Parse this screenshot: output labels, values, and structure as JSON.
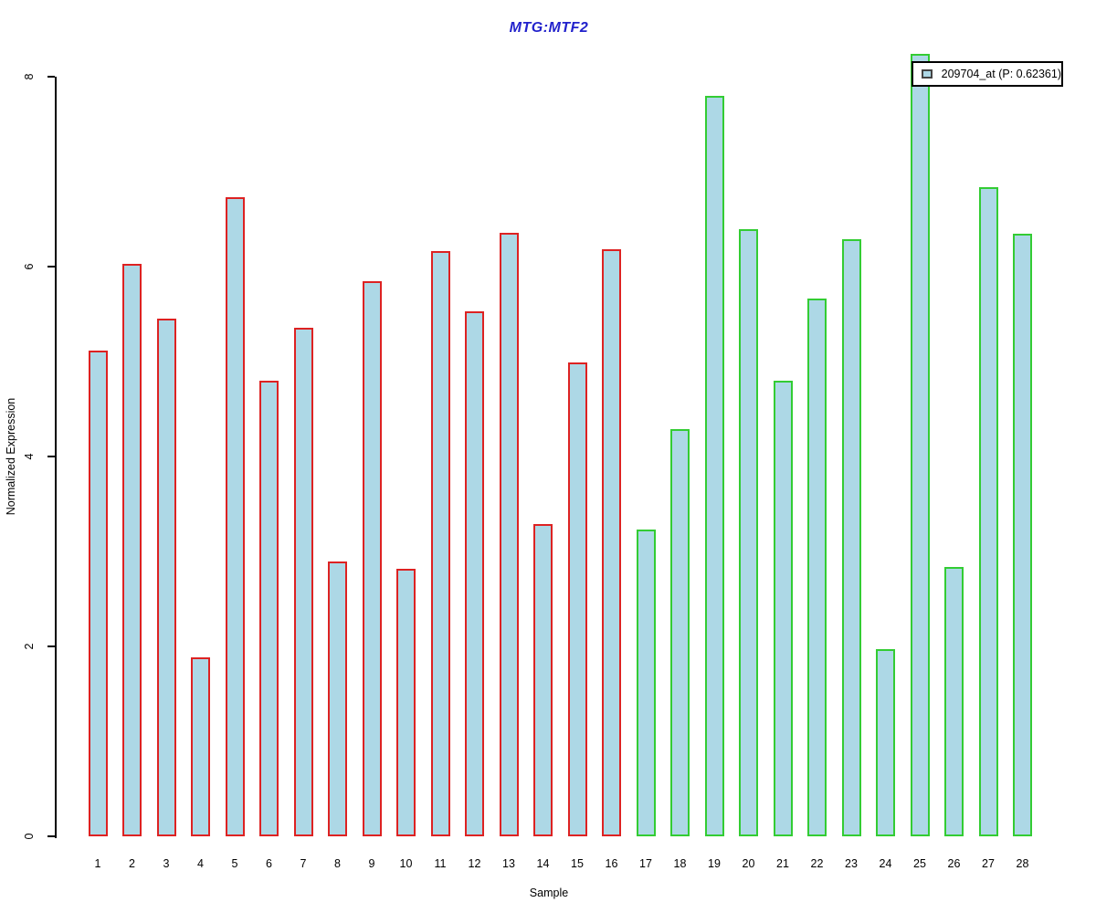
{
  "title": "MTG:MTF2",
  "ylabel": "Normalized Expression",
  "xlabel": "Sample",
  "legend": {
    "label": "209704_at (P: 0.62361)"
  },
  "colors": {
    "title": "#2222CC",
    "bar_fill": "#ADD8E6",
    "group_a_border": "#DD2222",
    "group_b_border": "#33CC33",
    "axis": "#000000",
    "legend_swatch_fill": "#ADD8E6",
    "legend_swatch_border": "#444444"
  },
  "chart_data": {
    "type": "bar",
    "title": "MTG:MTF2",
    "xlabel": "Sample",
    "ylabel": "Normalized Expression",
    "categories": [
      "1",
      "2",
      "3",
      "4",
      "5",
      "6",
      "7",
      "8",
      "9",
      "10",
      "11",
      "12",
      "13",
      "14",
      "15",
      "16",
      "17",
      "18",
      "19",
      "20",
      "21",
      "22",
      "23",
      "24",
      "25",
      "26",
      "27",
      "28"
    ],
    "values": [
      5.12,
      6.03,
      5.45,
      1.88,
      6.73,
      4.8,
      5.36,
      2.89,
      5.85,
      2.82,
      6.16,
      5.53,
      6.36,
      3.29,
      4.99,
      6.18,
      3.23,
      4.29,
      7.8,
      6.39,
      4.8,
      5.66,
      6.29,
      1.97,
      8.24,
      2.84,
      6.84,
      6.35
    ],
    "bar_fill": "#ADD8E6",
    "border_groups": [
      {
        "label": "samples 1-16",
        "count": 16,
        "border_color": "#DD2222"
      },
      {
        "label": "samples 17-28",
        "count": 12,
        "border_color": "#33CC33"
      }
    ],
    "yticks": [
      0,
      2,
      4,
      6,
      8
    ],
    "ylim": [
      0,
      8.4
    ],
    "grid": false,
    "legend_position": "top-right",
    "legend_entries": [
      "209704_at (P: 0.62361)"
    ]
  }
}
